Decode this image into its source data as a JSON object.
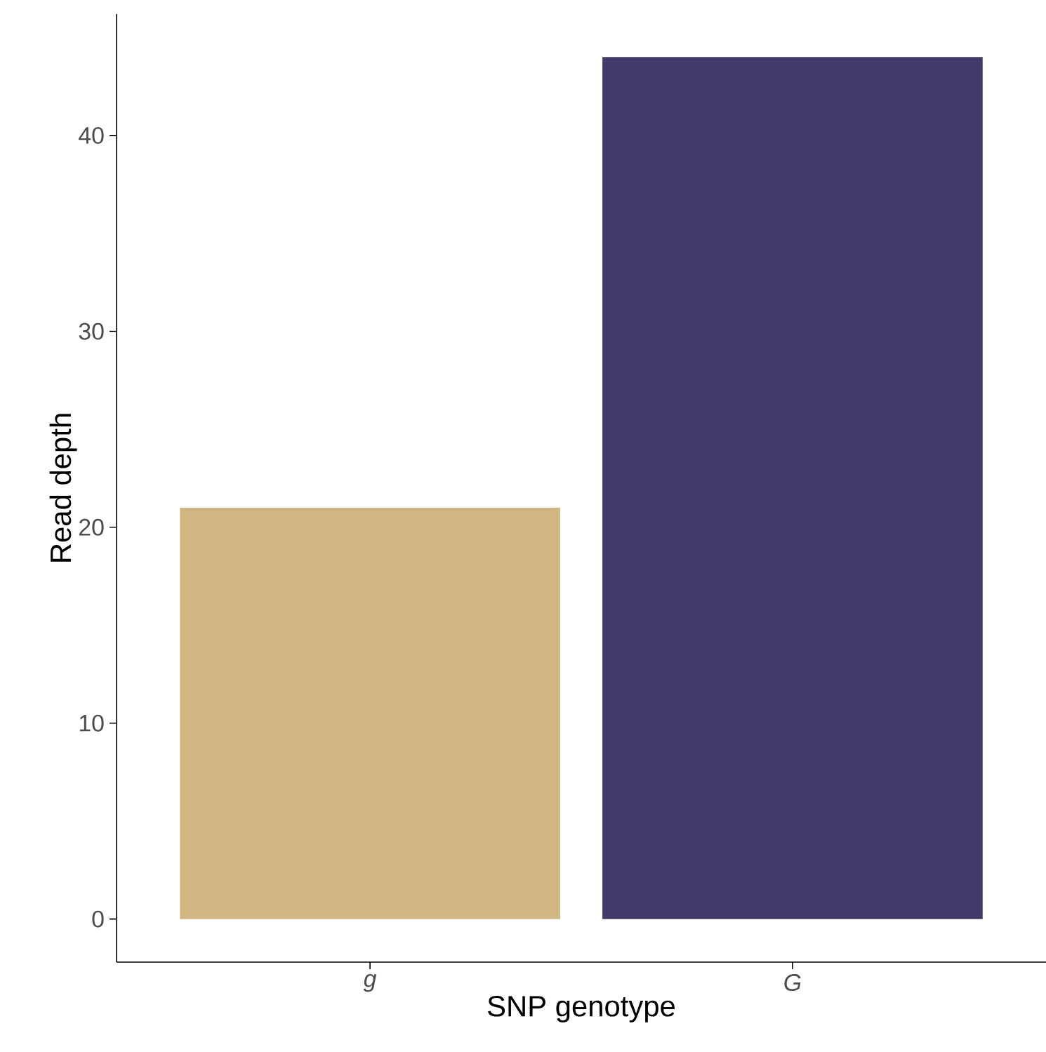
{
  "chart_data": {
    "type": "bar",
    "xlabel": "SNP genotype",
    "ylabel": "Read depth",
    "categories": [
      "g",
      "G"
    ],
    "values": [
      21,
      44
    ],
    "colors": [
      "#d0b683",
      "#433a6b"
    ],
    "ylim": [
      -2.2,
      46.2
    ],
    "yticks": [
      0,
      10,
      20,
      30,
      40
    ],
    "grid": false
  }
}
